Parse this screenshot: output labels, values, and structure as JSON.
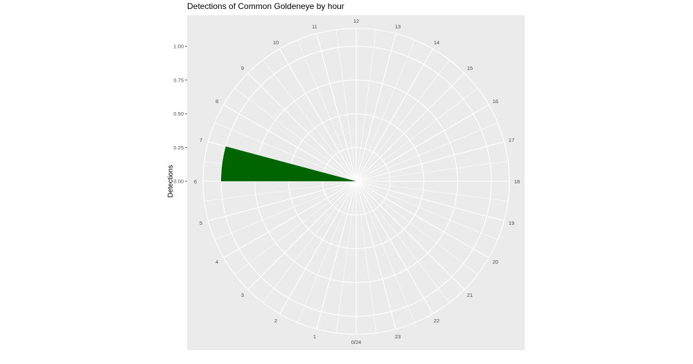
{
  "chart_data": {
    "type": "bar",
    "coord": "polar",
    "title": "Detections of Common Goldeneye by hour",
    "xlabel": "",
    "ylabel": "Detections",
    "theta_labels": [
      "0/24",
      "1",
      "2",
      "3",
      "4",
      "5",
      "6",
      "7",
      "8",
      "9",
      "10",
      "11",
      "12",
      "13",
      "14",
      "15",
      "16",
      "17",
      "18",
      "19",
      "20",
      "21",
      "22",
      "23"
    ],
    "y_ticks": [
      "0.00",
      "0.25",
      "0.50",
      "0.75",
      "1.00"
    ],
    "ylim": [
      0,
      1
    ],
    "categories": [
      6
    ],
    "values": [
      1
    ],
    "bar_color": "#006400",
    "panel_color": "#EBEBEB",
    "grid": true
  }
}
